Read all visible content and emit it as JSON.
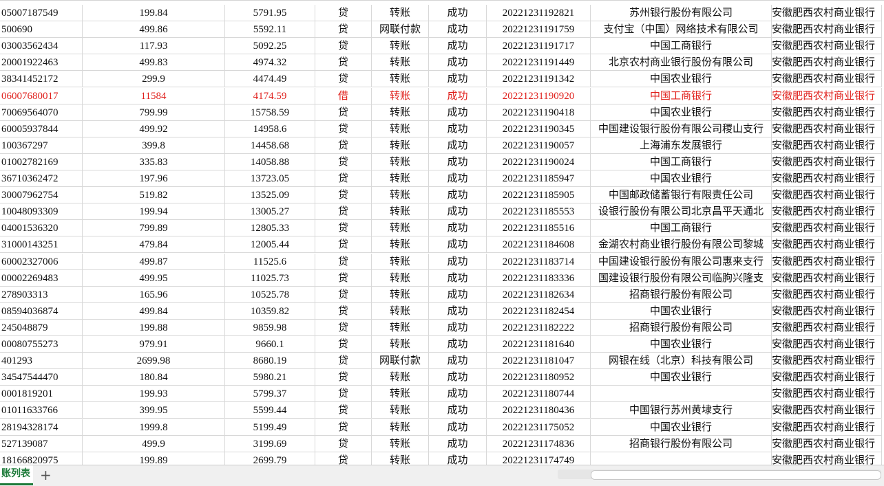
{
  "table": {
    "rows": [
      [
        "05007187549",
        "199.84",
        "5791.95",
        "贷",
        "转账",
        "成功",
        "20221231192821",
        "苏州银行股份有限公司",
        "安徽肥西农村商业银行"
      ],
      [
        "500690",
        "499.86",
        "5592.11",
        "贷",
        "网联付款",
        "成功",
        "20221231191759",
        "支付宝（中国）网络技术有限公司",
        "安徽肥西农村商业银行"
      ],
      [
        "03003562434",
        "117.93",
        "5092.25",
        "贷",
        "转账",
        "成功",
        "20221231191717",
        "中国工商银行",
        "安徽肥西农村商业银行"
      ],
      [
        "20001922463",
        "499.83",
        "4974.32",
        "贷",
        "转账",
        "成功",
        "20221231191449",
        "北京农村商业银行股份有限公司",
        "安徽肥西农村商业银行"
      ],
      [
        "38341452172",
        "299.9",
        "4474.49",
        "贷",
        "转账",
        "成功",
        "20221231191342",
        "中国农业银行",
        "安徽肥西农村商业银行"
      ],
      [
        "06007680017",
        "11584",
        "4174.59",
        "借",
        "转账",
        "成功",
        "20221231190920",
        "中国工商银行",
        "安徽肥西农村商业银行"
      ],
      [
        "70069564070",
        "799.99",
        "15758.59",
        "贷",
        "转账",
        "成功",
        "20221231190418",
        "中国农业银行",
        "安徽肥西农村商业银行"
      ],
      [
        "60005937844",
        "499.92",
        "14958.6",
        "贷",
        "转账",
        "成功",
        "20221231190345",
        "中国建设银行股份有限公司稷山支行",
        "安徽肥西农村商业银行"
      ],
      [
        "100367297",
        "399.8",
        "14458.68",
        "贷",
        "转账",
        "成功",
        "20221231190057",
        "上海浦东发展银行",
        "安徽肥西农村商业银行"
      ],
      [
        "01002782169",
        "335.83",
        "14058.88",
        "贷",
        "转账",
        "成功",
        "20221231190024",
        "中国工商银行",
        "安徽肥西农村商业银行"
      ],
      [
        "36710362472",
        "197.96",
        "13723.05",
        "贷",
        "转账",
        "成功",
        "20221231185947",
        "中国农业银行",
        "安徽肥西农村商业银行"
      ],
      [
        "30007962754",
        "519.82",
        "13525.09",
        "贷",
        "转账",
        "成功",
        "20221231185905",
        "中国邮政储蓄银行有限责任公司",
        "安徽肥西农村商业银行"
      ],
      [
        "10048093309",
        "199.94",
        "13005.27",
        "贷",
        "转账",
        "成功",
        "20221231185553",
        "设银行股份有限公司北京昌平天通北",
        "安徽肥西农村商业银行"
      ],
      [
        "04001536320",
        "799.89",
        "12805.33",
        "贷",
        "转账",
        "成功",
        "20221231185516",
        "中国工商银行",
        "安徽肥西农村商业银行"
      ],
      [
        "31000143251",
        "479.84",
        "12005.44",
        "贷",
        "转账",
        "成功",
        "20221231184608",
        "金湖农村商业银行股份有限公司黎城",
        "安徽肥西农村商业银行"
      ],
      [
        "60002327006",
        "499.87",
        "11525.6",
        "贷",
        "转账",
        "成功",
        "20221231183714",
        "中国建设银行股份有限公司惠来支行",
        "安徽肥西农村商业银行"
      ],
      [
        "00002269483",
        "499.95",
        "11025.73",
        "贷",
        "转账",
        "成功",
        "20221231183336",
        "国建设银行股份有限公司临朐兴隆支",
        "安徽肥西农村商业银行"
      ],
      [
        "278903313",
        "165.96",
        "10525.78",
        "贷",
        "转账",
        "成功",
        "20221231182634",
        "招商银行股份有限公司",
        "安徽肥西农村商业银行"
      ],
      [
        "08594036874",
        "499.84",
        "10359.82",
        "贷",
        "转账",
        "成功",
        "20221231182454",
        "中国农业银行",
        "安徽肥西农村商业银行"
      ],
      [
        "245048879",
        "199.88",
        "9859.98",
        "贷",
        "转账",
        "成功",
        "20221231182222",
        "招商银行股份有限公司",
        "安徽肥西农村商业银行"
      ],
      [
        "00080755273",
        "979.91",
        "9660.1",
        "贷",
        "转账",
        "成功",
        "20221231181640",
        "中国农业银行",
        "安徽肥西农村商业银行"
      ],
      [
        "401293",
        "2699.98",
        "8680.19",
        "贷",
        "网联付款",
        "成功",
        "20221231181047",
        "网银在线（北京）科技有限公司",
        "安徽肥西农村商业银行"
      ],
      [
        "34547544470",
        "180.84",
        "5980.21",
        "贷",
        "转账",
        "成功",
        "20221231180952",
        "中国农业银行",
        "安徽肥西农村商业银行"
      ],
      [
        "0001819201",
        "199.93",
        "5799.37",
        "贷",
        "转账",
        "成功",
        "20221231180744",
        null,
        "安徽肥西农村商业银行"
      ],
      [
        "01011633766",
        "399.95",
        "5599.44",
        "贷",
        "转账",
        "成功",
        "20221231180436",
        "中国银行苏州黄埭支行",
        "安徽肥西农村商业银行"
      ],
      [
        "28194328174",
        "1999.8",
        "5199.49",
        "贷",
        "转账",
        "成功",
        "20221231175052",
        "中国农业银行",
        "安徽肥西农村商业银行"
      ],
      [
        "527139087",
        "499.9",
        "3199.69",
        "贷",
        "转账",
        "成功",
        "20221231174836",
        "招商银行股份有限公司",
        "安徽肥西农村商业银行"
      ],
      [
        "18166820975",
        "199.89",
        "2699.79",
        "贷",
        "转账",
        "成功",
        "20221231174749",
        null,
        "安徽肥西农村商业银行"
      ]
    ]
  },
  "sheet_tab": "账列表"
}
